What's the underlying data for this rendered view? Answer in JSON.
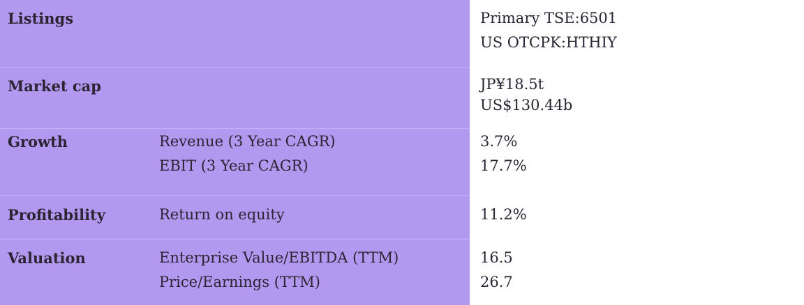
{
  "rows": [
    {
      "label": "Listings",
      "metrics": [],
      "values": [
        "Primary TSE:6501",
        "US OTCPK:HTHIY"
      ]
    },
    {
      "label": "Market cap",
      "metrics": [],
      "values": [
        "JP¥18.5t",
        "US$130.44b"
      ]
    },
    {
      "label": "Growth",
      "metrics": [
        "Revenue (3 Year CAGR)",
        "EBIT (3 Year CAGR)"
      ],
      "values": [
        "3.7%",
        "17.7%"
      ]
    },
    {
      "label": "Profitability",
      "metrics": [
        "Return on equity"
      ],
      "values": [
        "11.2%"
      ]
    },
    {
      "label": "Valuation",
      "metrics": [
        "Enterprise Value/EBITDA (TTM)",
        "Price/Earnings (TTM)"
      ],
      "values": [
        "16.5",
        "26.7"
      ]
    }
  ],
  "colors": {
    "label_panel": "#b398f0",
    "value_panel": "#ffffff",
    "text": "#2b2533"
  }
}
